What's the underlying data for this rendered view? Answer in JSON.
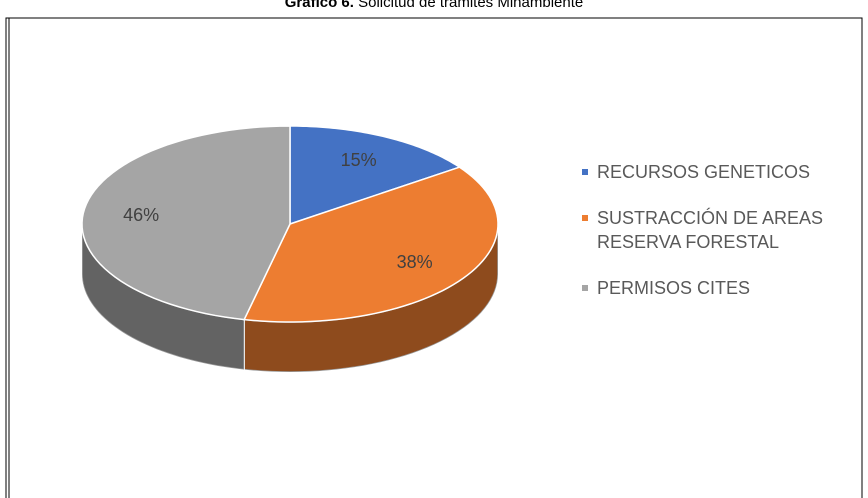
{
  "chart_data": {
    "type": "pie",
    "title": "Gráfico 6.",
    "subtitle": "Solicitud de trámites Minambiente",
    "categories": [
      "RECURSOS GENETICOS",
      "SUSTRACCIÓN DE AREAS RESERVA FORESTAL",
      "PERMISOS CITES"
    ],
    "values": [
      15,
      38,
      46
    ],
    "value_labels": [
      "15%",
      "38%",
      "46%"
    ],
    "colors": [
      "#4472c4",
      "#ed7d31",
      "#a5a5a5"
    ],
    "legend": "right"
  }
}
